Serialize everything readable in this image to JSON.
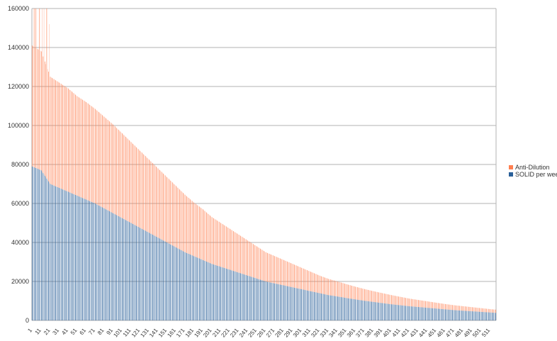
{
  "chart_data": {
    "type": "bar",
    "stacked": true,
    "x_start": 1,
    "x_end": 517,
    "x_tick_step": 10,
    "ylim": [
      0,
      160000
    ],
    "y_ticks": [
      0,
      20000,
      40000,
      60000,
      80000,
      100000,
      120000,
      140000,
      160000
    ],
    "grid": true,
    "legend_position": "right",
    "series": [
      {
        "name": "SOLID per week",
        "color": "#2a6099",
        "values_sampled_every_10": [
          79000,
          77000,
          70000,
          68000,
          66000,
          64000,
          62000,
          60000,
          57500,
          55000,
          52500,
          50000,
          47500,
          45000,
          42500,
          40000,
          37500,
          35000,
          33000,
          31000,
          29000,
          27500,
          26000,
          24500,
          23000,
          21500,
          20000,
          19000,
          18000,
          17000,
          16000,
          15000,
          14000,
          13000,
          12300,
          11500,
          10800,
          10100,
          9500,
          8900,
          8300,
          7800,
          7300,
          6900,
          6500,
          6100,
          5700,
          5300,
          5000,
          4700,
          4400,
          4100,
          3800
        ]
      },
      {
        "name": "Anti-Dilution",
        "color": "#ff7f50",
        "values_sampled_every_10": [
          62000,
          61000,
          55000,
          54000,
          53000,
          51000,
          50000,
          48500,
          47000,
          45500,
          43500,
          41500,
          39500,
          37500,
          35500,
          33500,
          31500,
          29500,
          27500,
          26000,
          24000,
          22500,
          21000,
          19500,
          18000,
          16500,
          15000,
          14000,
          13000,
          12000,
          11000,
          10000,
          9000,
          8300,
          7700,
          7100,
          6500,
          6000,
          5500,
          5100,
          4700,
          4300,
          3900,
          3600,
          3300,
          3000,
          2700,
          2500,
          2300,
          2100,
          1900,
          1700,
          1600
        ]
      }
    ],
    "spikes": [
      {
        "x": 3,
        "value": 160000
      },
      {
        "x": 5,
        "value": 160000
      },
      {
        "x": 9,
        "value": 160000
      },
      {
        "x": 12,
        "value": 160000
      },
      {
        "x": 14,
        "value": 160000
      },
      {
        "x": 17,
        "value": 160000
      },
      {
        "x": 20,
        "value": 152000
      }
    ]
  }
}
